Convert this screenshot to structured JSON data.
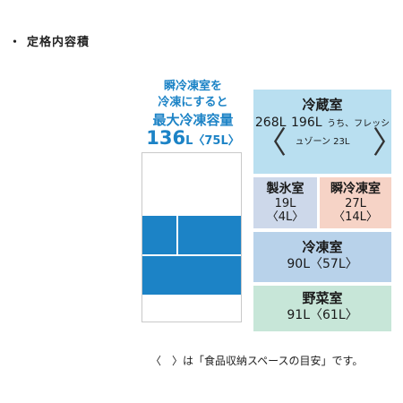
{
  "title": "定格内容積",
  "freezer_header": {
    "line1": "瞬冷凍室を",
    "line2": "冷凍にすると",
    "line3": "最大冷凍容量",
    "max_value": "136",
    "max_unit": "L",
    "max_food": "〈75L〉"
  },
  "compartments": {
    "fridge": {
      "name": "冷蔵室",
      "total": "268L",
      "food": "196L",
      "note": "うち、フレッシュゾーン 23L"
    },
    "ice": {
      "name": "製氷室",
      "total": "19L",
      "food": "〈4L〉"
    },
    "instant_freeze": {
      "name": "瞬冷凍室",
      "total": "27L",
      "food": "〈14L〉"
    },
    "freezer": {
      "name": "冷凍室",
      "total": "90L",
      "food": "〈57L〉"
    },
    "vegetable": {
      "name": "野菜室",
      "total": "91L",
      "food": "〈61L〉"
    }
  },
  "footnote": "〈　〉は「食品収納スペースの目安」です。",
  "colors": {
    "accent_blue": "#1c83c6",
    "fridge": "#b9dff0",
    "ice": "#cdd8ea",
    "instant_freeze": "#f6d3c6",
    "freezer": "#b8d2ea",
    "vegetable": "#c7e6d8"
  }
}
